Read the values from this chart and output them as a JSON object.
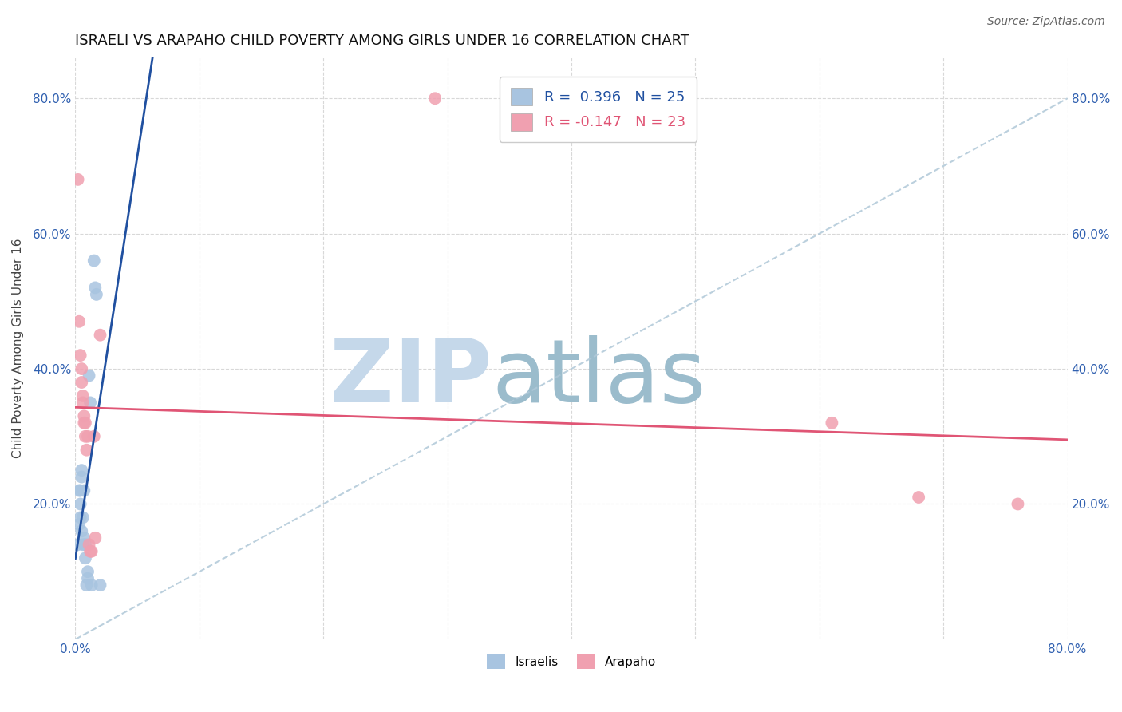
{
  "title": "ISRAELI VS ARAPAHO CHILD POVERTY AMONG GIRLS UNDER 16 CORRELATION CHART",
  "source": "Source: ZipAtlas.com",
  "ylabel": "Child Poverty Among Girls Under 16",
  "xlabel": "",
  "background_color": "#ffffff",
  "xlim": [
    0.0,
    0.8
  ],
  "ylim": [
    0.0,
    0.86
  ],
  "ytick_vals": [
    0.0,
    0.2,
    0.4,
    0.6,
    0.8
  ],
  "ytick_labels": [
    "",
    "20.0%",
    "40.0%",
    "60.0%",
    "80.0%"
  ],
  "xtick_vals": [
    0.0,
    0.1,
    0.2,
    0.3,
    0.4,
    0.5,
    0.6,
    0.7,
    0.8
  ],
  "xtick_labels": [
    "0.0%",
    "",
    "",
    "",
    "",
    "",
    "",
    "",
    "80.0%"
  ],
  "grid_color": "#d8d8d8",
  "legend_R_israeli": "R =  0.396",
  "legend_N_israeli": "N = 25",
  "legend_R_arapaho": "R = -0.147",
  "legend_N_arapaho": "N = 23",
  "israeli_color": "#a8c4e0",
  "arapaho_color": "#f0a0b0",
  "israeli_line_color": "#2050a0",
  "arapaho_line_color": "#e05575",
  "title_fontsize": 13,
  "label_fontsize": 11,
  "tick_fontsize": 11,
  "legend_fontsize": 13,
  "source_fontsize": 10,
  "israeli_scatter": [
    [
      0.002,
      0.14
    ],
    [
      0.003,
      0.17
    ],
    [
      0.003,
      0.22
    ],
    [
      0.004,
      0.22
    ],
    [
      0.004,
      0.2
    ],
    [
      0.004,
      0.18
    ],
    [
      0.005,
      0.25
    ],
    [
      0.005,
      0.24
    ],
    [
      0.005,
      0.16
    ],
    [
      0.006,
      0.14
    ],
    [
      0.006,
      0.18
    ],
    [
      0.007,
      0.15
    ],
    [
      0.007,
      0.22
    ],
    [
      0.008,
      0.14
    ],
    [
      0.008,
      0.12
    ],
    [
      0.009,
      0.08
    ],
    [
      0.01,
      0.1
    ],
    [
      0.01,
      0.09
    ],
    [
      0.011,
      0.39
    ],
    [
      0.012,
      0.35
    ],
    [
      0.013,
      0.08
    ],
    [
      0.015,
      0.56
    ],
    [
      0.016,
      0.52
    ],
    [
      0.017,
      0.51
    ],
    [
      0.02,
      0.08
    ]
  ],
  "arapaho_scatter": [
    [
      0.002,
      0.68
    ],
    [
      0.003,
      0.47
    ],
    [
      0.004,
      0.42
    ],
    [
      0.005,
      0.4
    ],
    [
      0.005,
      0.38
    ],
    [
      0.006,
      0.36
    ],
    [
      0.006,
      0.35
    ],
    [
      0.007,
      0.33
    ],
    [
      0.007,
      0.32
    ],
    [
      0.008,
      0.32
    ],
    [
      0.008,
      0.3
    ],
    [
      0.009,
      0.28
    ],
    [
      0.01,
      0.3
    ],
    [
      0.011,
      0.14
    ],
    [
      0.012,
      0.13
    ],
    [
      0.013,
      0.13
    ],
    [
      0.015,
      0.3
    ],
    [
      0.016,
      0.15
    ],
    [
      0.02,
      0.45
    ],
    [
      0.29,
      0.8
    ],
    [
      0.61,
      0.32
    ],
    [
      0.68,
      0.21
    ],
    [
      0.76,
      0.2
    ]
  ],
  "diag_line_x": [
    0.0,
    0.8
  ],
  "diag_line_y": [
    0.0,
    0.8
  ],
  "watermark_zip_color": "#c5d8ea",
  "watermark_atlas_color": "#9bbccc"
}
